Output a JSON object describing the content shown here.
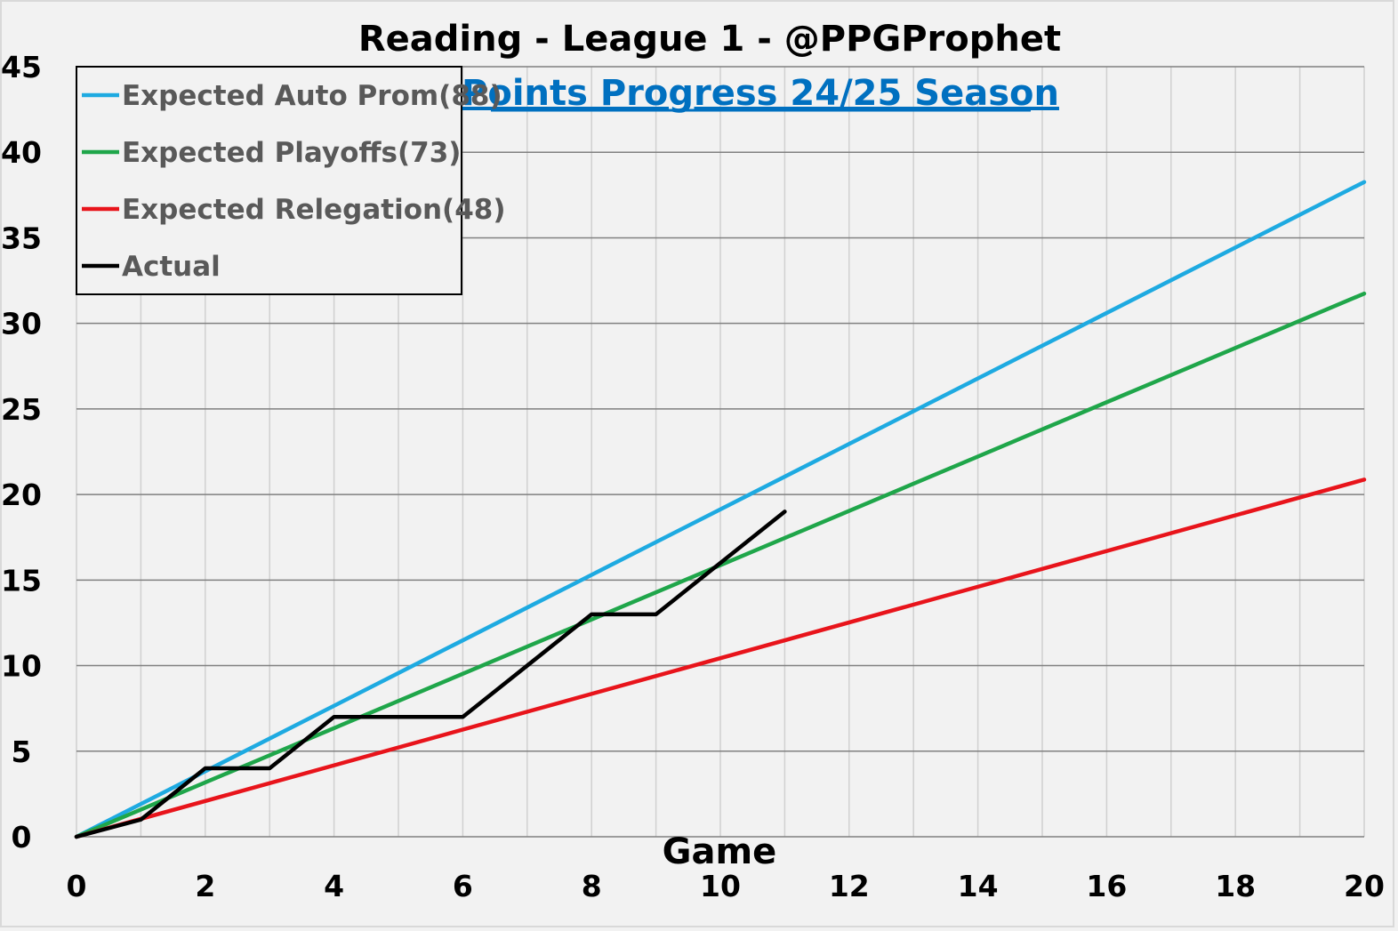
{
  "chart_data": {
    "type": "line",
    "title": "Reading - League 1 - @PPGProphet",
    "subtitle": "Points Progress 24/25 Season",
    "xlabel": "Game",
    "ylabel": "",
    "xlim": [
      0,
      20
    ],
    "ylim": [
      0,
      45
    ],
    "x_ticks": [
      0,
      2,
      4,
      6,
      8,
      10,
      12,
      14,
      16,
      18,
      20
    ],
    "y_ticks": [
      0,
      5,
      10,
      15,
      20,
      25,
      30,
      35,
      40,
      45
    ],
    "grid": true,
    "legend_position": "top-left",
    "series": [
      {
        "name": "Expected Auto Prom(88)",
        "color": "#1eaae1",
        "x": [
          0,
          20
        ],
        "y": [
          0,
          38.26
        ]
      },
      {
        "name": "Expected Playoffs(73)",
        "color": "#1fa64a",
        "x": [
          0,
          20
        ],
        "y": [
          0,
          31.74
        ]
      },
      {
        "name": "Expected Relegation(48)",
        "color": "#e8141b",
        "x": [
          0,
          20
        ],
        "y": [
          0,
          20.87
        ]
      },
      {
        "name": "Actual",
        "color": "#000000",
        "x": [
          0,
          1,
          2,
          3,
          4,
          5,
          6,
          7,
          8,
          9,
          10,
          11
        ],
        "y": [
          0,
          1,
          4,
          4,
          7,
          7,
          7,
          10,
          13,
          13,
          16,
          19
        ]
      }
    ]
  }
}
